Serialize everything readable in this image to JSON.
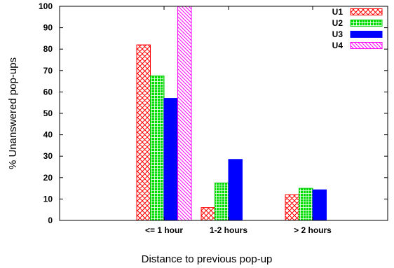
{
  "chart_data": {
    "type": "bar",
    "title": "",
    "xlabel": "Distance to previous pop-up",
    "ylabel": "% Unanswered pop-ups",
    "ylim": [
      0,
      100
    ],
    "yticks": [
      "0",
      "10",
      "20",
      "30",
      "40",
      "50",
      "60",
      "70",
      "80",
      "90",
      "100"
    ],
    "categories": [
      "<= 1 hour",
      "1-2 hours",
      "> 2 hours"
    ],
    "legend_position": "top-right",
    "grid": false,
    "series": [
      {
        "name": "U1",
        "values": [
          82,
          6,
          12
        ],
        "color": "#ff0000",
        "pattern": "crosshatch"
      },
      {
        "name": "U2",
        "values": [
          67.5,
          17.5,
          15
        ],
        "color": "#00cc00",
        "pattern": "grid"
      },
      {
        "name": "U3",
        "values": [
          57,
          28.5,
          14.3
        ],
        "color": "#0000ff",
        "pattern": "solid"
      },
      {
        "name": "U4",
        "values": [
          100,
          0,
          0
        ],
        "color": "#ff00ff",
        "pattern": "diagonal"
      }
    ]
  }
}
